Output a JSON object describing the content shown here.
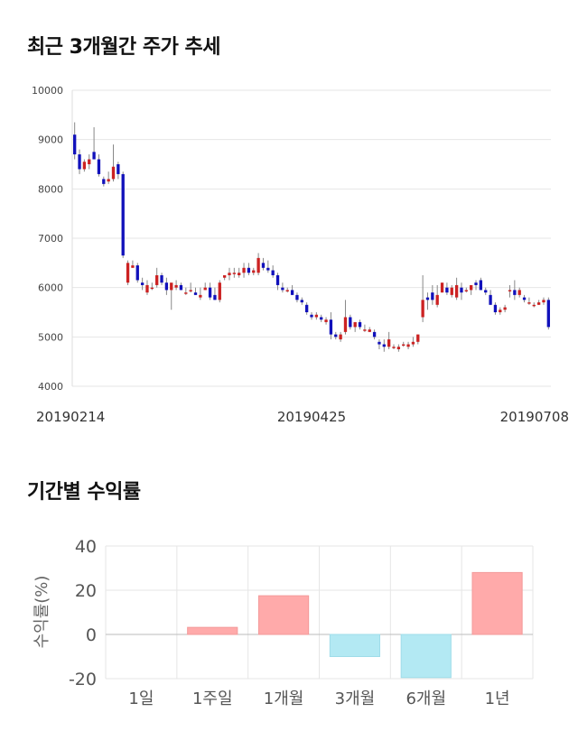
{
  "sections": {
    "price_title": "최근 3개월간 주가 추세",
    "returns_title": "기간별 수익률"
  },
  "chart_data": [
    {
      "type": "candlestick",
      "title": "최근 3개월간 주가 추세",
      "ylim": [
        4000,
        10000
      ],
      "y_ticks": [
        "10000",
        "9000",
        "8000",
        "7000",
        "6000",
        "5000",
        "4000"
      ],
      "x_tick_labels": [
        "20190214",
        "20190425",
        "20190708"
      ],
      "x_tick_index": [
        0,
        49,
        99
      ],
      "colors": {
        "up": "#cc2222",
        "down": "#1111bb",
        "grid": "#e6e6e6"
      },
      "candles": [
        [
          9100,
          9350,
          8600,
          8700
        ],
        [
          8700,
          8800,
          8300,
          8400
        ],
        [
          8400,
          8600,
          8350,
          8550
        ],
        [
          8500,
          8700,
          8400,
          8600
        ],
        [
          8750,
          9250,
          8600,
          8600
        ],
        [
          8600,
          8700,
          8250,
          8300
        ],
        [
          8200,
          8250,
          8050,
          8100
        ],
        [
          8150,
          8350,
          8100,
          8200
        ],
        [
          8200,
          8900,
          8150,
          8450
        ],
        [
          8500,
          8550,
          8200,
          8300
        ],
        [
          8300,
          8350,
          6600,
          6650
        ],
        [
          6100,
          6550,
          6050,
          6500
        ],
        [
          6400,
          6550,
          6400,
          6450
        ],
        [
          6450,
          6500,
          6100,
          6150
        ],
        [
          6100,
          6200,
          5950,
          6050
        ],
        [
          5900,
          6150,
          5850,
          6050
        ],
        [
          6000,
          6100,
          5950,
          6000
        ],
        [
          6050,
          6400,
          6000,
          6250
        ],
        [
          6250,
          6300,
          6050,
          6100
        ],
        [
          6100,
          6200,
          5850,
          5950
        ],
        [
          5950,
          6050,
          5550,
          6100
        ],
        [
          6000,
          6150,
          5950,
          6050
        ],
        [
          6050,
          6100,
          5950,
          5950
        ],
        [
          5900,
          6000,
          5850,
          5900
        ],
        [
          5950,
          6100,
          5900,
          5950
        ],
        [
          5900,
          6000,
          5850,
          5850
        ],
        [
          5800,
          6000,
          5750,
          5850
        ],
        [
          5950,
          6100,
          5950,
          6000
        ],
        [
          6000,
          6100,
          5750,
          5800
        ],
        [
          5850,
          6000,
          5750,
          5750
        ],
        [
          5750,
          6150,
          5700,
          6100
        ],
        [
          6200,
          6250,
          6150,
          6250
        ],
        [
          6250,
          6400,
          6150,
          6300
        ],
        [
          6300,
          6400,
          6200,
          6300
        ],
        [
          6250,
          6400,
          6200,
          6300
        ],
        [
          6300,
          6500,
          6200,
          6400
        ],
        [
          6400,
          6500,
          6250,
          6300
        ],
        [
          6300,
          6400,
          6250,
          6350
        ],
        [
          6300,
          6700,
          6250,
          6600
        ],
        [
          6500,
          6600,
          6350,
          6400
        ],
        [
          6400,
          6550,
          6300,
          6350
        ],
        [
          6350,
          6450,
          6200,
          6250
        ],
        [
          6250,
          6300,
          5950,
          6050
        ],
        [
          6000,
          6100,
          5900,
          5950
        ],
        [
          5950,
          6000,
          5900,
          5950
        ],
        [
          5950,
          6050,
          5850,
          5850
        ],
        [
          5850,
          5900,
          5700,
          5750
        ],
        [
          5750,
          5800,
          5650,
          5700
        ],
        [
          5650,
          5700,
          5450,
          5500
        ],
        [
          5450,
          5500,
          5350,
          5400
        ],
        [
          5400,
          5500,
          5350,
          5450
        ],
        [
          5400,
          5450,
          5300,
          5350
        ],
        [
          5300,
          5400,
          5250,
          5350
        ],
        [
          5350,
          5500,
          4950,
          5050
        ],
        [
          5050,
          5100,
          4950,
          5000
        ],
        [
          4950,
          5100,
          4900,
          5050
        ],
        [
          5100,
          5750,
          5050,
          5400
        ],
        [
          5400,
          5450,
          5150,
          5200
        ],
        [
          5200,
          5300,
          5100,
          5300
        ],
        [
          5300,
          5350,
          5150,
          5200
        ],
        [
          5150,
          5250,
          5100,
          5150
        ],
        [
          5100,
          5200,
          5100,
          5150
        ],
        [
          5100,
          5150,
          4950,
          5000
        ],
        [
          4900,
          4950,
          4750,
          4850
        ],
        [
          4850,
          4950,
          4700,
          4800
        ],
        [
          4800,
          5100,
          4750,
          4950
        ],
        [
          4800,
          4850,
          4750,
          4800
        ],
        [
          4750,
          4850,
          4700,
          4800
        ],
        [
          4850,
          4900,
          4800,
          4850
        ],
        [
          4800,
          4900,
          4750,
          4850
        ],
        [
          4850,
          5000,
          4800,
          4900
        ],
        [
          4900,
          5050,
          4850,
          5050
        ],
        [
          5400,
          6250,
          5300,
          5750
        ],
        [
          5800,
          5900,
          5550,
          5750
        ],
        [
          5900,
          6050,
          5650,
          5750
        ],
        [
          5650,
          6050,
          5600,
          5850
        ],
        [
          5900,
          6050,
          5900,
          6100
        ],
        [
          6000,
          6100,
          5850,
          5900
        ],
        [
          5850,
          6050,
          5800,
          6000
        ],
        [
          5800,
          6200,
          5750,
          6050
        ],
        [
          6000,
          6100,
          5750,
          5900
        ],
        [
          5950,
          6000,
          5900,
          5950
        ],
        [
          5950,
          6000,
          5850,
          6050
        ],
        [
          6100,
          6150,
          5950,
          6050
        ],
        [
          6150,
          6200,
          5950,
          5950
        ],
        [
          5950,
          6000,
          5850,
          5900
        ],
        [
          5850,
          5950,
          5650,
          5650
        ],
        [
          5650,
          5700,
          5450,
          5500
        ],
        [
          5500,
          5600,
          5450,
          5550
        ],
        [
          5550,
          5650,
          5500,
          5600
        ],
        [
          5950,
          6050,
          5800,
          5950
        ],
        [
          5950,
          6150,
          5750,
          5850
        ],
        [
          5850,
          6000,
          5800,
          5950
        ],
        [
          5800,
          5850,
          5700,
          5750
        ],
        [
          5700,
          5800,
          5650,
          5700
        ],
        [
          5650,
          5700,
          5600,
          5650
        ],
        [
          5650,
          5750,
          5650,
          5700
        ],
        [
          5700,
          5800,
          5650,
          5750
        ],
        [
          5750,
          5800,
          5150,
          5200
        ]
      ]
    },
    {
      "type": "bar",
      "title": "기간별 수익률",
      "ylabel": "수익률(%)",
      "ylim": [
        -20,
        40
      ],
      "y_ticks": [
        "40",
        "20",
        "0",
        "-20"
      ],
      "categories": [
        "1일",
        "1주일",
        "1개월",
        "3개월",
        "6개월",
        "1년"
      ],
      "values": [
        0,
        3.2,
        17.5,
        -10.0,
        -19.5,
        28.0
      ],
      "colors": {
        "positive": "#ffaaaa",
        "negative": "#b3e9f3",
        "grid": "#e6e6e6"
      }
    }
  ]
}
